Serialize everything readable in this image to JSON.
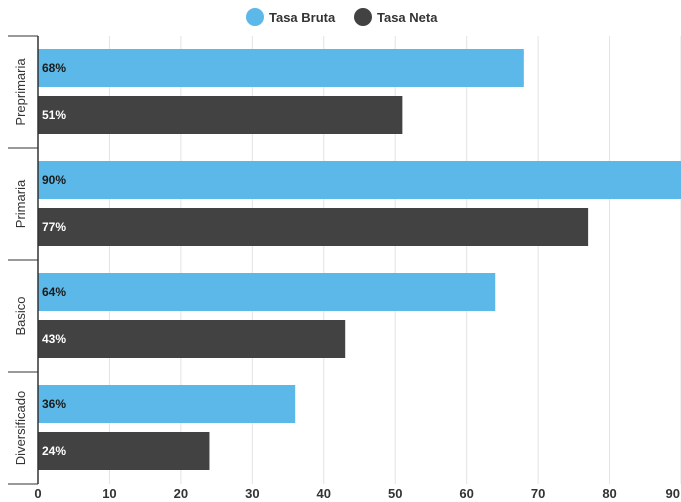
{
  "chart_data": {
    "type": "bar",
    "orientation": "horizontal",
    "categories": [
      "Preprimaria",
      "Primaria",
      "Basico",
      "Diversificado"
    ],
    "series": [
      {
        "name": "Tasa Bruta",
        "values": [
          68,
          90,
          64,
          36
        ],
        "labels": [
          "68%",
          "90%",
          "64%",
          "36%"
        ],
        "color": "#5bb8e8",
        "label_color": "#1a1a1a"
      },
      {
        "name": "Tasa Neta",
        "values": [
          51,
          77,
          43,
          24
        ],
        "labels": [
          "51%",
          "77%",
          "43%",
          "24%"
        ],
        "color": "#424242",
        "label_color": "#ffffff"
      }
    ],
    "xlim": [
      0,
      90
    ],
    "xticks": [
      "0",
      "10",
      "20",
      "30",
      "40",
      "50",
      "60",
      "70",
      "80",
      "90"
    ],
    "grid": true,
    "legend_position": "top-center",
    "title": "",
    "xlabel": "",
    "ylabel": ""
  }
}
